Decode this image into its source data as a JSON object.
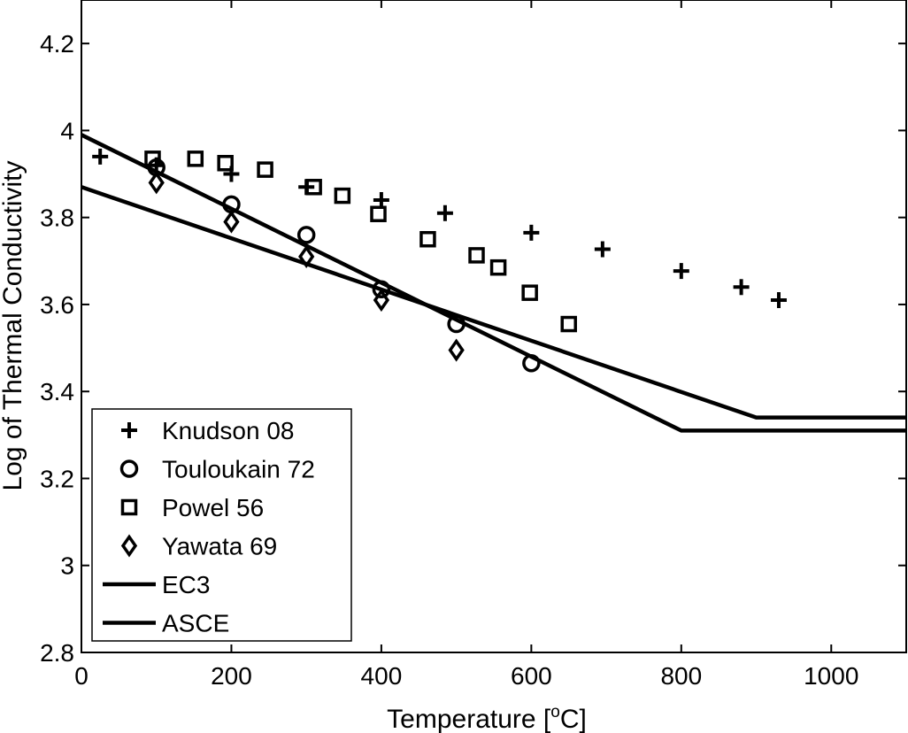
{
  "chart_data": {
    "type": "scatter",
    "title": "",
    "xlabel": "Temperature [",
    "xlabel_sup": "o",
    "xlabel_unit": "C]",
    "ylabel": "Log of Thermal Conductivity",
    "xlim": [
      0,
      1100
    ],
    "ylim": [
      2.8,
      4.3
    ],
    "x_ticks": [
      0,
      200,
      400,
      600,
      800,
      1000
    ],
    "x_tick_labels": [
      "0",
      "200",
      "400",
      "600",
      "800",
      "1000"
    ],
    "y_ticks": [
      2.8,
      3.0,
      3.2,
      3.4,
      3.6,
      3.8,
      4.0,
      4.2
    ],
    "y_tick_labels": [
      "2.8",
      "3",
      "3.2",
      "3.4",
      "3.6",
      "3.8",
      "4",
      "4.2"
    ],
    "grid": false,
    "legend_position": "bottom-left",
    "series": [
      {
        "name": "Knudson 08",
        "marker": "plus",
        "x": [
          25,
          100,
          200,
          300,
          400,
          485,
          600,
          695,
          800,
          880,
          930
        ],
        "y": [
          3.94,
          3.92,
          3.9,
          3.87,
          3.84,
          3.81,
          3.765,
          3.727,
          3.677,
          3.64,
          3.61
        ]
      },
      {
        "name": "Touloukain 72",
        "marker": "circle",
        "x": [
          100,
          200,
          300,
          400,
          500,
          600
        ],
        "y": [
          3.915,
          3.83,
          3.76,
          3.635,
          3.555,
          3.465
        ]
      },
      {
        "name": "Powel 56",
        "marker": "square",
        "x": [
          95,
          152,
          192,
          245,
          310,
          348,
          396,
          462,
          527,
          556,
          598,
          650
        ],
        "y": [
          3.935,
          3.935,
          3.925,
          3.91,
          3.87,
          3.85,
          3.808,
          3.75,
          3.713,
          3.685,
          3.627,
          3.555
        ]
      },
      {
        "name": "Yawata 69",
        "marker": "diamond",
        "x": [
          100,
          200,
          300,
          400,
          500
        ],
        "y": [
          3.88,
          3.79,
          3.71,
          3.61,
          3.495
        ]
      },
      {
        "name": "EC3",
        "marker": "line",
        "x": [
          0,
          800,
          1100
        ],
        "y": [
          3.99,
          3.31,
          3.31
        ]
      },
      {
        "name": "ASCE",
        "marker": "line",
        "x": [
          0,
          900,
          1100
        ],
        "y": [
          3.87,
          3.34,
          3.34
        ]
      }
    ]
  }
}
